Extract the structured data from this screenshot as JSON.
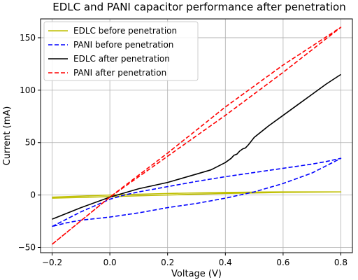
{
  "chart_data": {
    "type": "line",
    "title": "EDLC and PANI capacitor performance after penetration",
    "xlabel": "Voltage (V)",
    "ylabel": "Current (mA)",
    "xlim": [
      -0.24,
      0.84
    ],
    "ylim": [
      -55,
      168
    ],
    "xticks": [
      -0.2,
      0.0,
      0.2,
      0.4,
      0.6,
      0.8
    ],
    "xtick_labels": [
      "−0.2",
      "0.0",
      "0.2",
      "0.4",
      "0.6",
      "0.8"
    ],
    "yticks": [
      -50,
      0,
      50,
      100,
      150
    ],
    "ytick_labels": [
      "−50",
      "0",
      "50",
      "100",
      "150"
    ],
    "grid": true,
    "legend_position": "top-left",
    "series": [
      {
        "name": "EDLC before penetration",
        "color": "#bfbf00",
        "dash": "solid",
        "x": [
          -0.2,
          0.0,
          0.2,
          0.4,
          0.6,
          0.8,
          0.6,
          0.4,
          0.2,
          0.0,
          -0.2
        ],
        "y": [
          -3,
          -1.5,
          0,
          1.5,
          2.5,
          3,
          3,
          2.5,
          1.5,
          0,
          -2
        ]
      },
      {
        "name": "PANI before penetration",
        "color": "#0000ff",
        "dash": "dashed",
        "x": [
          -0.2,
          -0.15,
          -0.1,
          -0.05,
          0.0,
          0.05,
          0.1,
          0.2,
          0.3,
          0.4,
          0.5,
          0.6,
          0.7,
          0.75,
          0.8,
          0.75,
          0.7,
          0.6,
          0.5,
          0.45,
          0.4,
          0.3,
          0.2,
          0.1,
          0.0,
          -0.1,
          -0.15,
          -0.2
        ],
        "y": [
          -30,
          -23,
          -16,
          -10,
          -4,
          0,
          3,
          8,
          13,
          17.5,
          21.5,
          25.5,
          29.5,
          32,
          35,
          28,
          21,
          11,
          3,
          0,
          -3,
          -8,
          -12,
          -17,
          -21,
          -24,
          -26.5,
          -30
        ]
      },
      {
        "name": "EDLC after penetration",
        "color": "#000000",
        "dash": "solid",
        "x": [
          -0.2,
          -0.1,
          0.0,
          0.05,
          0.1,
          0.2,
          0.3,
          0.35,
          0.4,
          0.41,
          0.42,
          0.43,
          0.44,
          0.45,
          0.46,
          0.47,
          0.48,
          0.5,
          0.55,
          0.6,
          0.65,
          0.7,
          0.75,
          0.8
        ],
        "y": [
          -23,
          -12,
          -2,
          2,
          6,
          12,
          20,
          24,
          31,
          33,
          35,
          38,
          39,
          42,
          44,
          45,
          48,
          55,
          66,
          76,
          86,
          96,
          106,
          115
        ]
      },
      {
        "name": "PANI after penetration",
        "color": "#ff0000",
        "dash": "dashed",
        "x": [
          -0.2,
          0.0,
          0.2,
          0.4,
          0.6,
          0.8,
          0.6,
          0.4,
          0.2,
          0.0,
          -0.2
        ],
        "y": [
          -47,
          -2,
          37,
          76,
          117,
          160,
          124,
          84,
          40,
          -2,
          -47
        ]
      }
    ]
  }
}
